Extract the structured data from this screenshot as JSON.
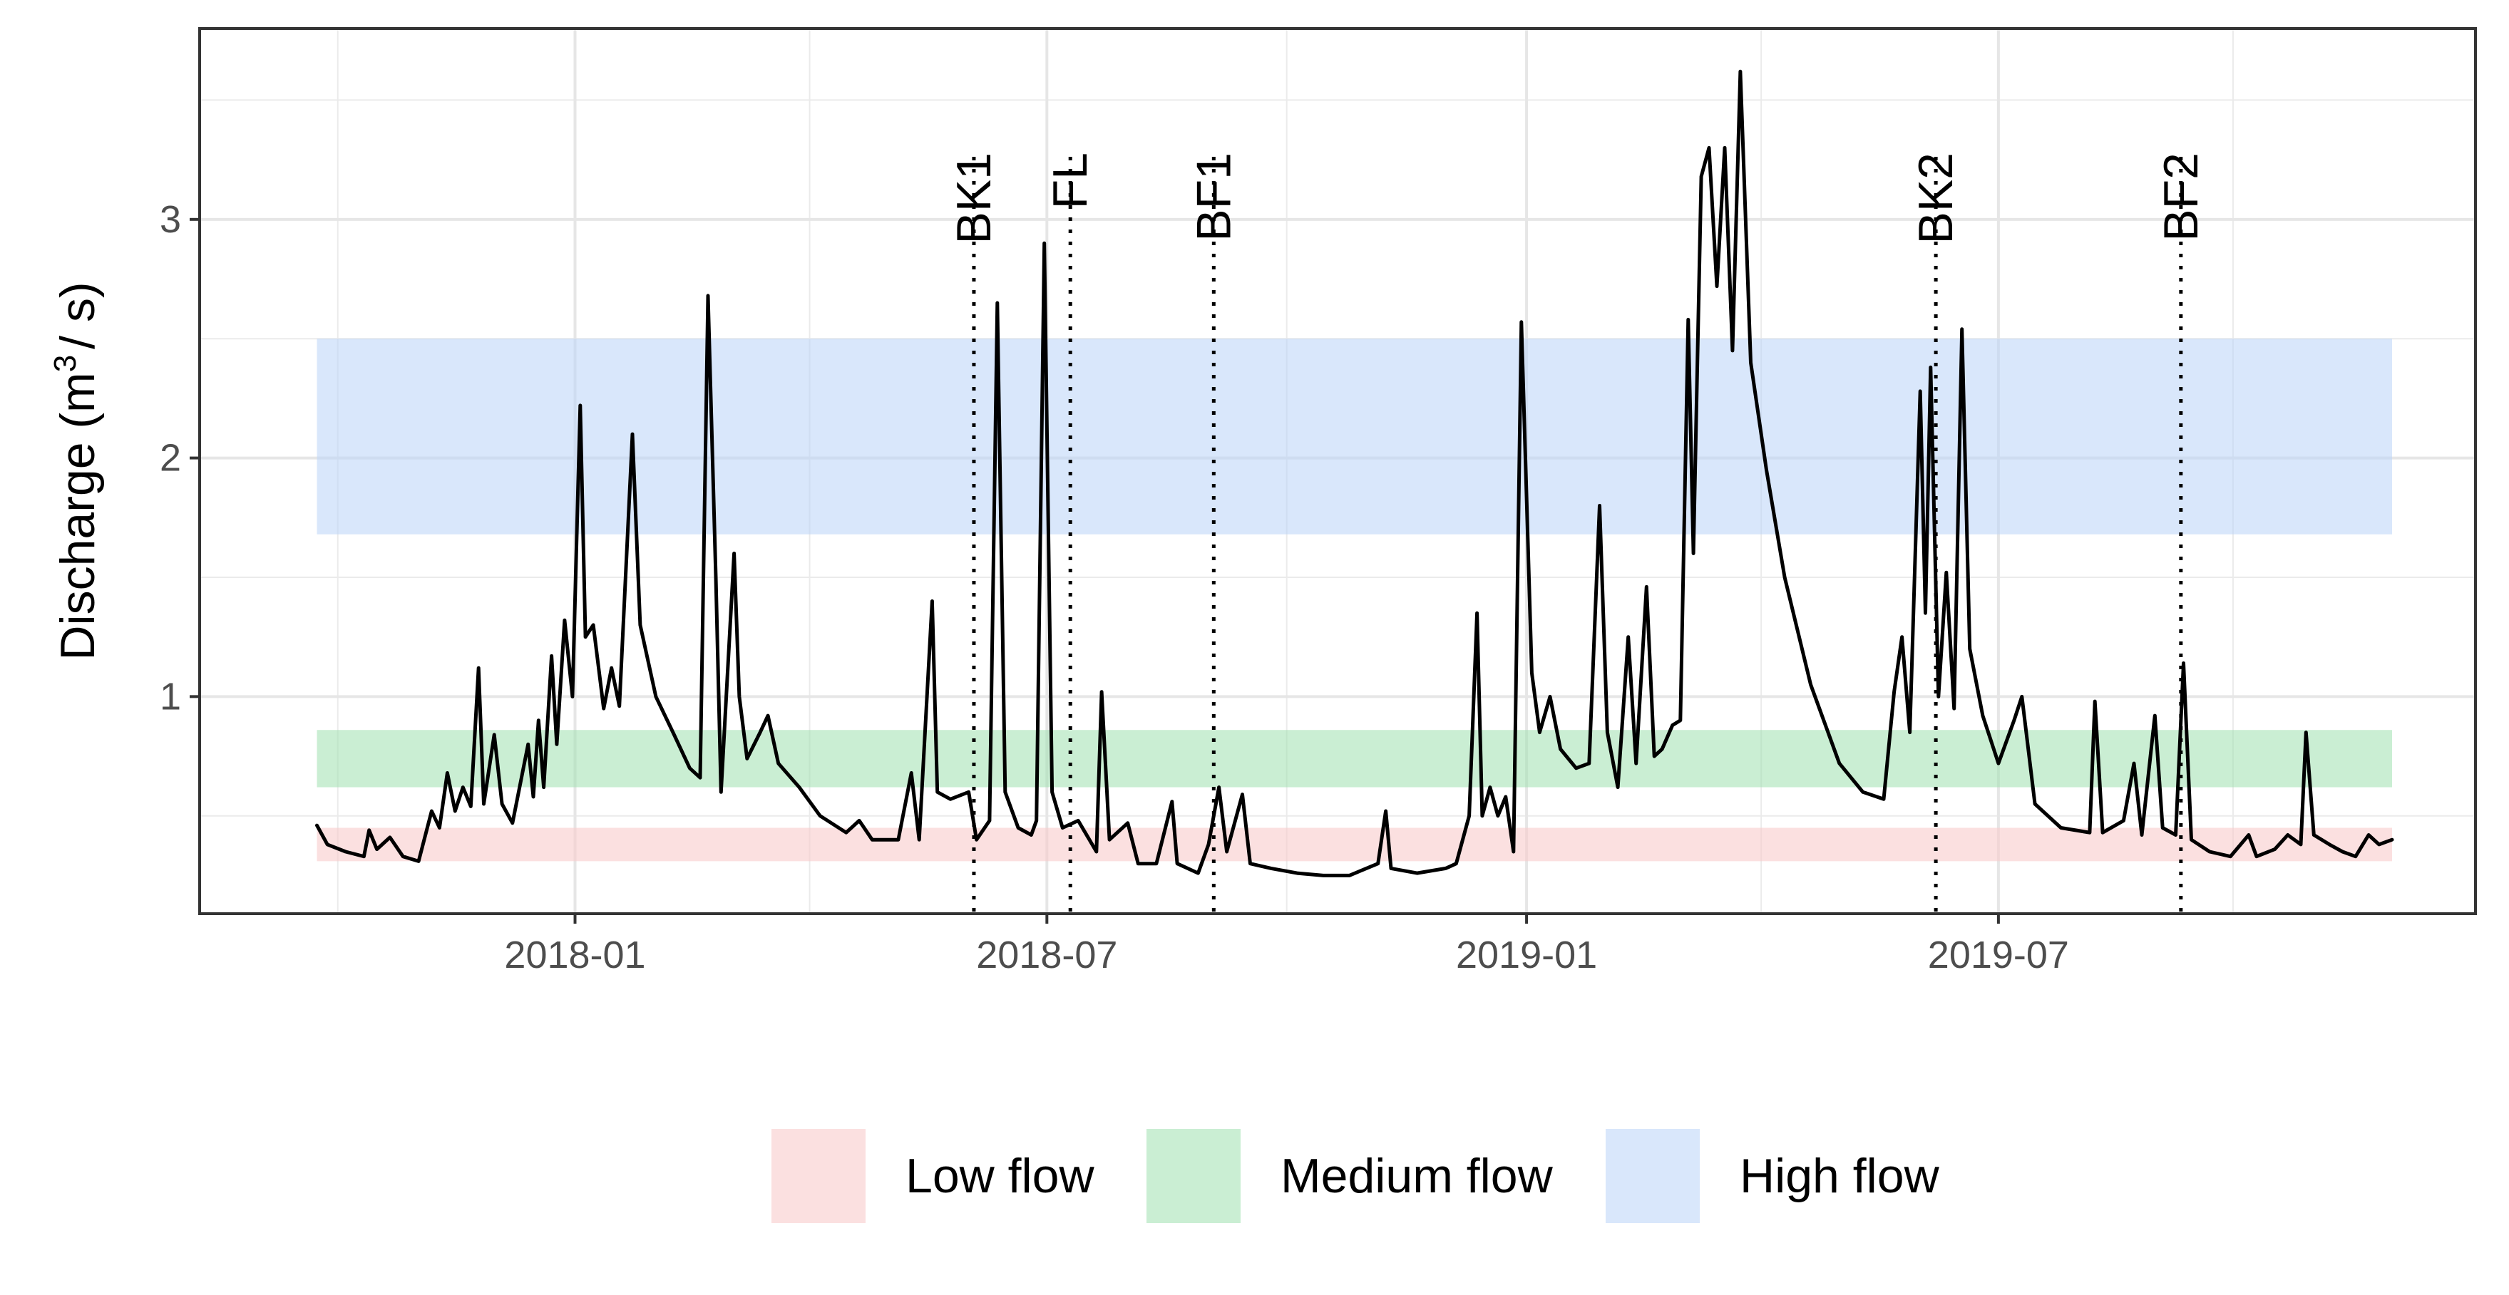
{
  "chart_data": {
    "type": "line",
    "title": "",
    "xlabel": "",
    "ylabel": "Discharge (m",
    "ylabel_sup": "3",
    "ylabel_tail": "/ s)",
    "x_ticks": [
      "2018-01",
      "2018-07",
      "2019-01",
      "2019-07"
    ],
    "y_ticks": [
      1,
      2,
      3
    ],
    "xlim": [
      "2017-08-10",
      "2019-12-31"
    ],
    "ylim": [
      0.09,
      3.8
    ],
    "grid": true,
    "bands": [
      {
        "name": "Low flow",
        "ymin": 0.31,
        "ymax": 0.45,
        "color": "#f8cbcb",
        "opacity": 0.6
      },
      {
        "name": "Medium flow",
        "ymin": 0.62,
        "ymax": 0.86,
        "color": "#9fe0ae",
        "opacity": 0.55
      },
      {
        "name": "High flow",
        "ymin": 1.68,
        "ymax": 2.5,
        "color": "#b9d3f7",
        "opacity": 0.55
      }
    ],
    "band_xrange": [
      "2017-09-24",
      "2019-11-29"
    ],
    "events": [
      {
        "label": "BK1",
        "date": "2018-06-03"
      },
      {
        "label": "FL",
        "date": "2018-07-10"
      },
      {
        "label": "BF1",
        "date": "2018-09-03"
      },
      {
        "label": "BK2",
        "date": "2019-06-07"
      },
      {
        "label": "BF2",
        "date": "2019-09-09"
      }
    ],
    "series": [
      {
        "line_color": "#000000",
        "points": [
          [
            "2017-09-24",
            0.46
          ],
          [
            "2017-09-28",
            0.38
          ],
          [
            "2017-10-05",
            0.35
          ],
          [
            "2017-10-12",
            0.33
          ],
          [
            "2017-10-14",
            0.44
          ],
          [
            "2017-10-17",
            0.36
          ],
          [
            "2017-10-22",
            0.41
          ],
          [
            "2017-10-27",
            0.33
          ],
          [
            "2017-11-02",
            0.31
          ],
          [
            "2017-11-07",
            0.52
          ],
          [
            "2017-11-10",
            0.45
          ],
          [
            "2017-11-13",
            0.68
          ],
          [
            "2017-11-16",
            0.52
          ],
          [
            "2017-11-19",
            0.62
          ],
          [
            "2017-11-22",
            0.54
          ],
          [
            "2017-11-25",
            1.12
          ],
          [
            "2017-11-27",
            0.55
          ],
          [
            "2017-12-01",
            0.84
          ],
          [
            "2017-12-04",
            0.55
          ],
          [
            "2017-12-08",
            0.47
          ],
          [
            "2017-12-14",
            0.8
          ],
          [
            "2017-12-16",
            0.58
          ],
          [
            "2017-12-18",
            0.9
          ],
          [
            "2017-12-20",
            0.62
          ],
          [
            "2017-12-23",
            1.17
          ],
          [
            "2017-12-25",
            0.8
          ],
          [
            "2017-12-28",
            1.32
          ],
          [
            "2017-12-31",
            1.0
          ],
          [
            "2018-01-03",
            2.22
          ],
          [
            "2018-01-05",
            1.25
          ],
          [
            "2018-01-08",
            1.3
          ],
          [
            "2018-01-12",
            0.95
          ],
          [
            "2018-01-15",
            1.12
          ],
          [
            "2018-01-18",
            0.96
          ],
          [
            "2018-01-23",
            2.1
          ],
          [
            "2018-01-26",
            1.3
          ],
          [
            "2018-02-01",
            1.0
          ],
          [
            "2018-02-08",
            0.84
          ],
          [
            "2018-02-14",
            0.7
          ],
          [
            "2018-02-18",
            0.66
          ],
          [
            "2018-02-21",
            2.68
          ],
          [
            "2018-02-24",
            1.5
          ],
          [
            "2018-02-26",
            0.6
          ],
          [
            "2018-03-03",
            1.6
          ],
          [
            "2018-03-05",
            1.0
          ],
          [
            "2018-03-08",
            0.74
          ],
          [
            "2018-03-13",
            0.85
          ],
          [
            "2018-03-16",
            0.92
          ],
          [
            "2018-03-20",
            0.72
          ],
          [
            "2018-03-28",
            0.62
          ],
          [
            "2018-04-05",
            0.5
          ],
          [
            "2018-04-15",
            0.43
          ],
          [
            "2018-04-20",
            0.48
          ],
          [
            "2018-04-25",
            0.4
          ],
          [
            "2018-05-05",
            0.4
          ],
          [
            "2018-05-10",
            0.68
          ],
          [
            "2018-05-13",
            0.4
          ],
          [
            "2018-05-18",
            1.4
          ],
          [
            "2018-05-20",
            0.6
          ],
          [
            "2018-05-25",
            0.57
          ],
          [
            "2018-06-01",
            0.6
          ],
          [
            "2018-06-04",
            0.4
          ],
          [
            "2018-06-09",
            0.48
          ],
          [
            "2018-06-12",
            2.65
          ],
          [
            "2018-06-15",
            0.6
          ],
          [
            "2018-06-20",
            0.45
          ],
          [
            "2018-06-25",
            0.42
          ],
          [
            "2018-06-27",
            0.48
          ],
          [
            "2018-06-30",
            2.9
          ],
          [
            "2018-07-03",
            0.6
          ],
          [
            "2018-07-07",
            0.45
          ],
          [
            "2018-07-13",
            0.48
          ],
          [
            "2018-07-20",
            0.35
          ],
          [
            "2018-07-22",
            1.02
          ],
          [
            "2018-07-25",
            0.4
          ],
          [
            "2018-08-01",
            0.47
          ],
          [
            "2018-08-05",
            0.3
          ],
          [
            "2018-08-12",
            0.3
          ],
          [
            "2018-08-18",
            0.56
          ],
          [
            "2018-08-20",
            0.3
          ],
          [
            "2018-08-28",
            0.26
          ],
          [
            "2018-09-01",
            0.38
          ],
          [
            "2018-09-05",
            0.62
          ],
          [
            "2018-09-08",
            0.35
          ],
          [
            "2018-09-14",
            0.59
          ],
          [
            "2018-09-17",
            0.3
          ],
          [
            "2018-09-25",
            0.28
          ],
          [
            "2018-10-05",
            0.26
          ],
          [
            "2018-10-15",
            0.25
          ],
          [
            "2018-10-25",
            0.25
          ],
          [
            "2018-11-05",
            0.3
          ],
          [
            "2018-11-08",
            0.52
          ],
          [
            "2018-11-10",
            0.28
          ],
          [
            "2018-11-20",
            0.26
          ],
          [
            "2018-12-01",
            0.28
          ],
          [
            "2018-12-05",
            0.3
          ],
          [
            "2018-12-10",
            0.5
          ],
          [
            "2018-12-13",
            1.35
          ],
          [
            "2018-12-15",
            0.5
          ],
          [
            "2018-12-18",
            0.62
          ],
          [
            "2018-12-21",
            0.5
          ],
          [
            "2018-12-24",
            0.58
          ],
          [
            "2018-12-27",
            0.35
          ],
          [
            "2018-12-30",
            2.57
          ],
          [
            "2019-01-03",
            1.1
          ],
          [
            "2019-01-06",
            0.85
          ],
          [
            "2019-01-10",
            1.0
          ],
          [
            "2019-01-14",
            0.78
          ],
          [
            "2019-01-20",
            0.7
          ],
          [
            "2019-01-25",
            0.72
          ],
          [
            "2019-01-29",
            1.8
          ],
          [
            "2019-02-01",
            0.85
          ],
          [
            "2019-02-05",
            0.62
          ],
          [
            "2019-02-09",
            1.25
          ],
          [
            "2019-02-12",
            0.72
          ],
          [
            "2019-02-16",
            1.46
          ],
          [
            "2019-02-19",
            0.75
          ],
          [
            "2019-02-22",
            0.78
          ],
          [
            "2019-02-26",
            0.88
          ],
          [
            "2019-03-01",
            0.9
          ],
          [
            "2019-03-04",
            2.58
          ],
          [
            "2019-03-06",
            1.6
          ],
          [
            "2019-03-09",
            3.18
          ],
          [
            "2019-03-12",
            3.3
          ],
          [
            "2019-03-15",
            2.72
          ],
          [
            "2019-03-18",
            3.3
          ],
          [
            "2019-03-21",
            2.45
          ],
          [
            "2019-03-24",
            3.62
          ],
          [
            "2019-03-28",
            2.4
          ],
          [
            "2019-04-03",
            1.95
          ],
          [
            "2019-04-10",
            1.5
          ],
          [
            "2019-04-20",
            1.05
          ],
          [
            "2019-05-01",
            0.72
          ],
          [
            "2019-05-10",
            0.6
          ],
          [
            "2019-05-18",
            0.57
          ],
          [
            "2019-05-22",
            1.02
          ],
          [
            "2019-05-25",
            1.25
          ],
          [
            "2019-05-28",
            0.85
          ],
          [
            "2019-06-01",
            2.28
          ],
          [
            "2019-06-03",
            1.35
          ],
          [
            "2019-06-05",
            2.38
          ],
          [
            "2019-06-08",
            1.0
          ],
          [
            "2019-06-11",
            1.52
          ],
          [
            "2019-06-14",
            0.95
          ],
          [
            "2019-06-17",
            2.54
          ],
          [
            "2019-06-20",
            1.2
          ],
          [
            "2019-06-25",
            0.92
          ],
          [
            "2019-07-01",
            0.72
          ],
          [
            "2019-07-07",
            0.9
          ],
          [
            "2019-07-10",
            1.0
          ],
          [
            "2019-07-15",
            0.55
          ],
          [
            "2019-07-25",
            0.45
          ],
          [
            "2019-08-05",
            0.43
          ],
          [
            "2019-08-07",
            0.98
          ],
          [
            "2019-08-10",
            0.43
          ],
          [
            "2019-08-18",
            0.48
          ],
          [
            "2019-08-22",
            0.72
          ],
          [
            "2019-08-25",
            0.42
          ],
          [
            "2019-08-30",
            0.92
          ],
          [
            "2019-09-02",
            0.45
          ],
          [
            "2019-09-07",
            0.42
          ],
          [
            "2019-09-10",
            1.14
          ],
          [
            "2019-09-13",
            0.4
          ],
          [
            "2019-09-20",
            0.35
          ],
          [
            "2019-09-28",
            0.33
          ],
          [
            "2019-10-05",
            0.42
          ],
          [
            "2019-10-08",
            0.33
          ],
          [
            "2019-10-15",
            0.36
          ],
          [
            "2019-10-20",
            0.42
          ],
          [
            "2019-10-25",
            0.38
          ],
          [
            "2019-10-27",
            0.85
          ],
          [
            "2019-10-30",
            0.42
          ],
          [
            "2019-11-05",
            0.38
          ],
          [
            "2019-11-10",
            0.35
          ],
          [
            "2019-11-15",
            0.33
          ],
          [
            "2019-11-20",
            0.42
          ],
          [
            "2019-11-24",
            0.38
          ],
          [
            "2019-11-29",
            0.4
          ]
        ]
      }
    ],
    "legend": {
      "placement": "bottom",
      "entries": [
        "Low flow",
        "Medium flow",
        "High flow"
      ]
    }
  }
}
